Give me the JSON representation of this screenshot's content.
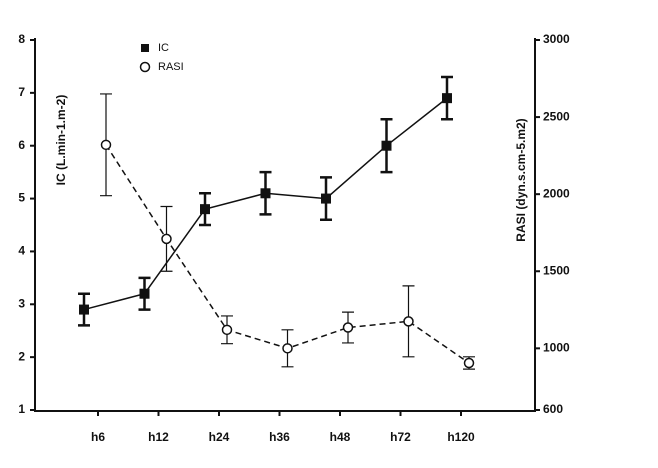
{
  "chart_data": {
    "type": "line",
    "categories": [
      "h6",
      "h12",
      "h24",
      "h36",
      "h48",
      "h72",
      "h120"
    ],
    "ylabel": "IC (L.min-1.m-2)",
    "y2label": "RASI (dyn.s.cm-5.m2)",
    "ylim": [
      1,
      8
    ],
    "yticks": [
      1,
      2,
      3,
      4,
      5,
      6,
      7,
      8
    ],
    "y2lim": [
      600,
      3000
    ],
    "y2ticks": [
      600,
      1000,
      1500,
      2000,
      2500,
      3000
    ],
    "legend": "upper left",
    "series": [
      {
        "name": "IC",
        "color": "#111111",
        "marker": "square",
        "dash": false,
        "values": [
          2.9,
          3.2,
          4.8,
          5.1,
          5.0,
          6.0,
          6.9
        ],
        "errors": [
          0.3,
          0.3,
          0.3,
          0.4,
          0.4,
          0.5,
          0.4
        ]
      },
      {
        "name": "RASI",
        "color": "#111111",
        "marker": "circle",
        "dash": true,
        "axis": "y2",
        "values": [
          2320,
          1710,
          1120,
          1000,
          1135,
          1175,
          905
        ],
        "errors": [
          330,
          210,
          90,
          120,
          100,
          230,
          40
        ]
      }
    ]
  }
}
